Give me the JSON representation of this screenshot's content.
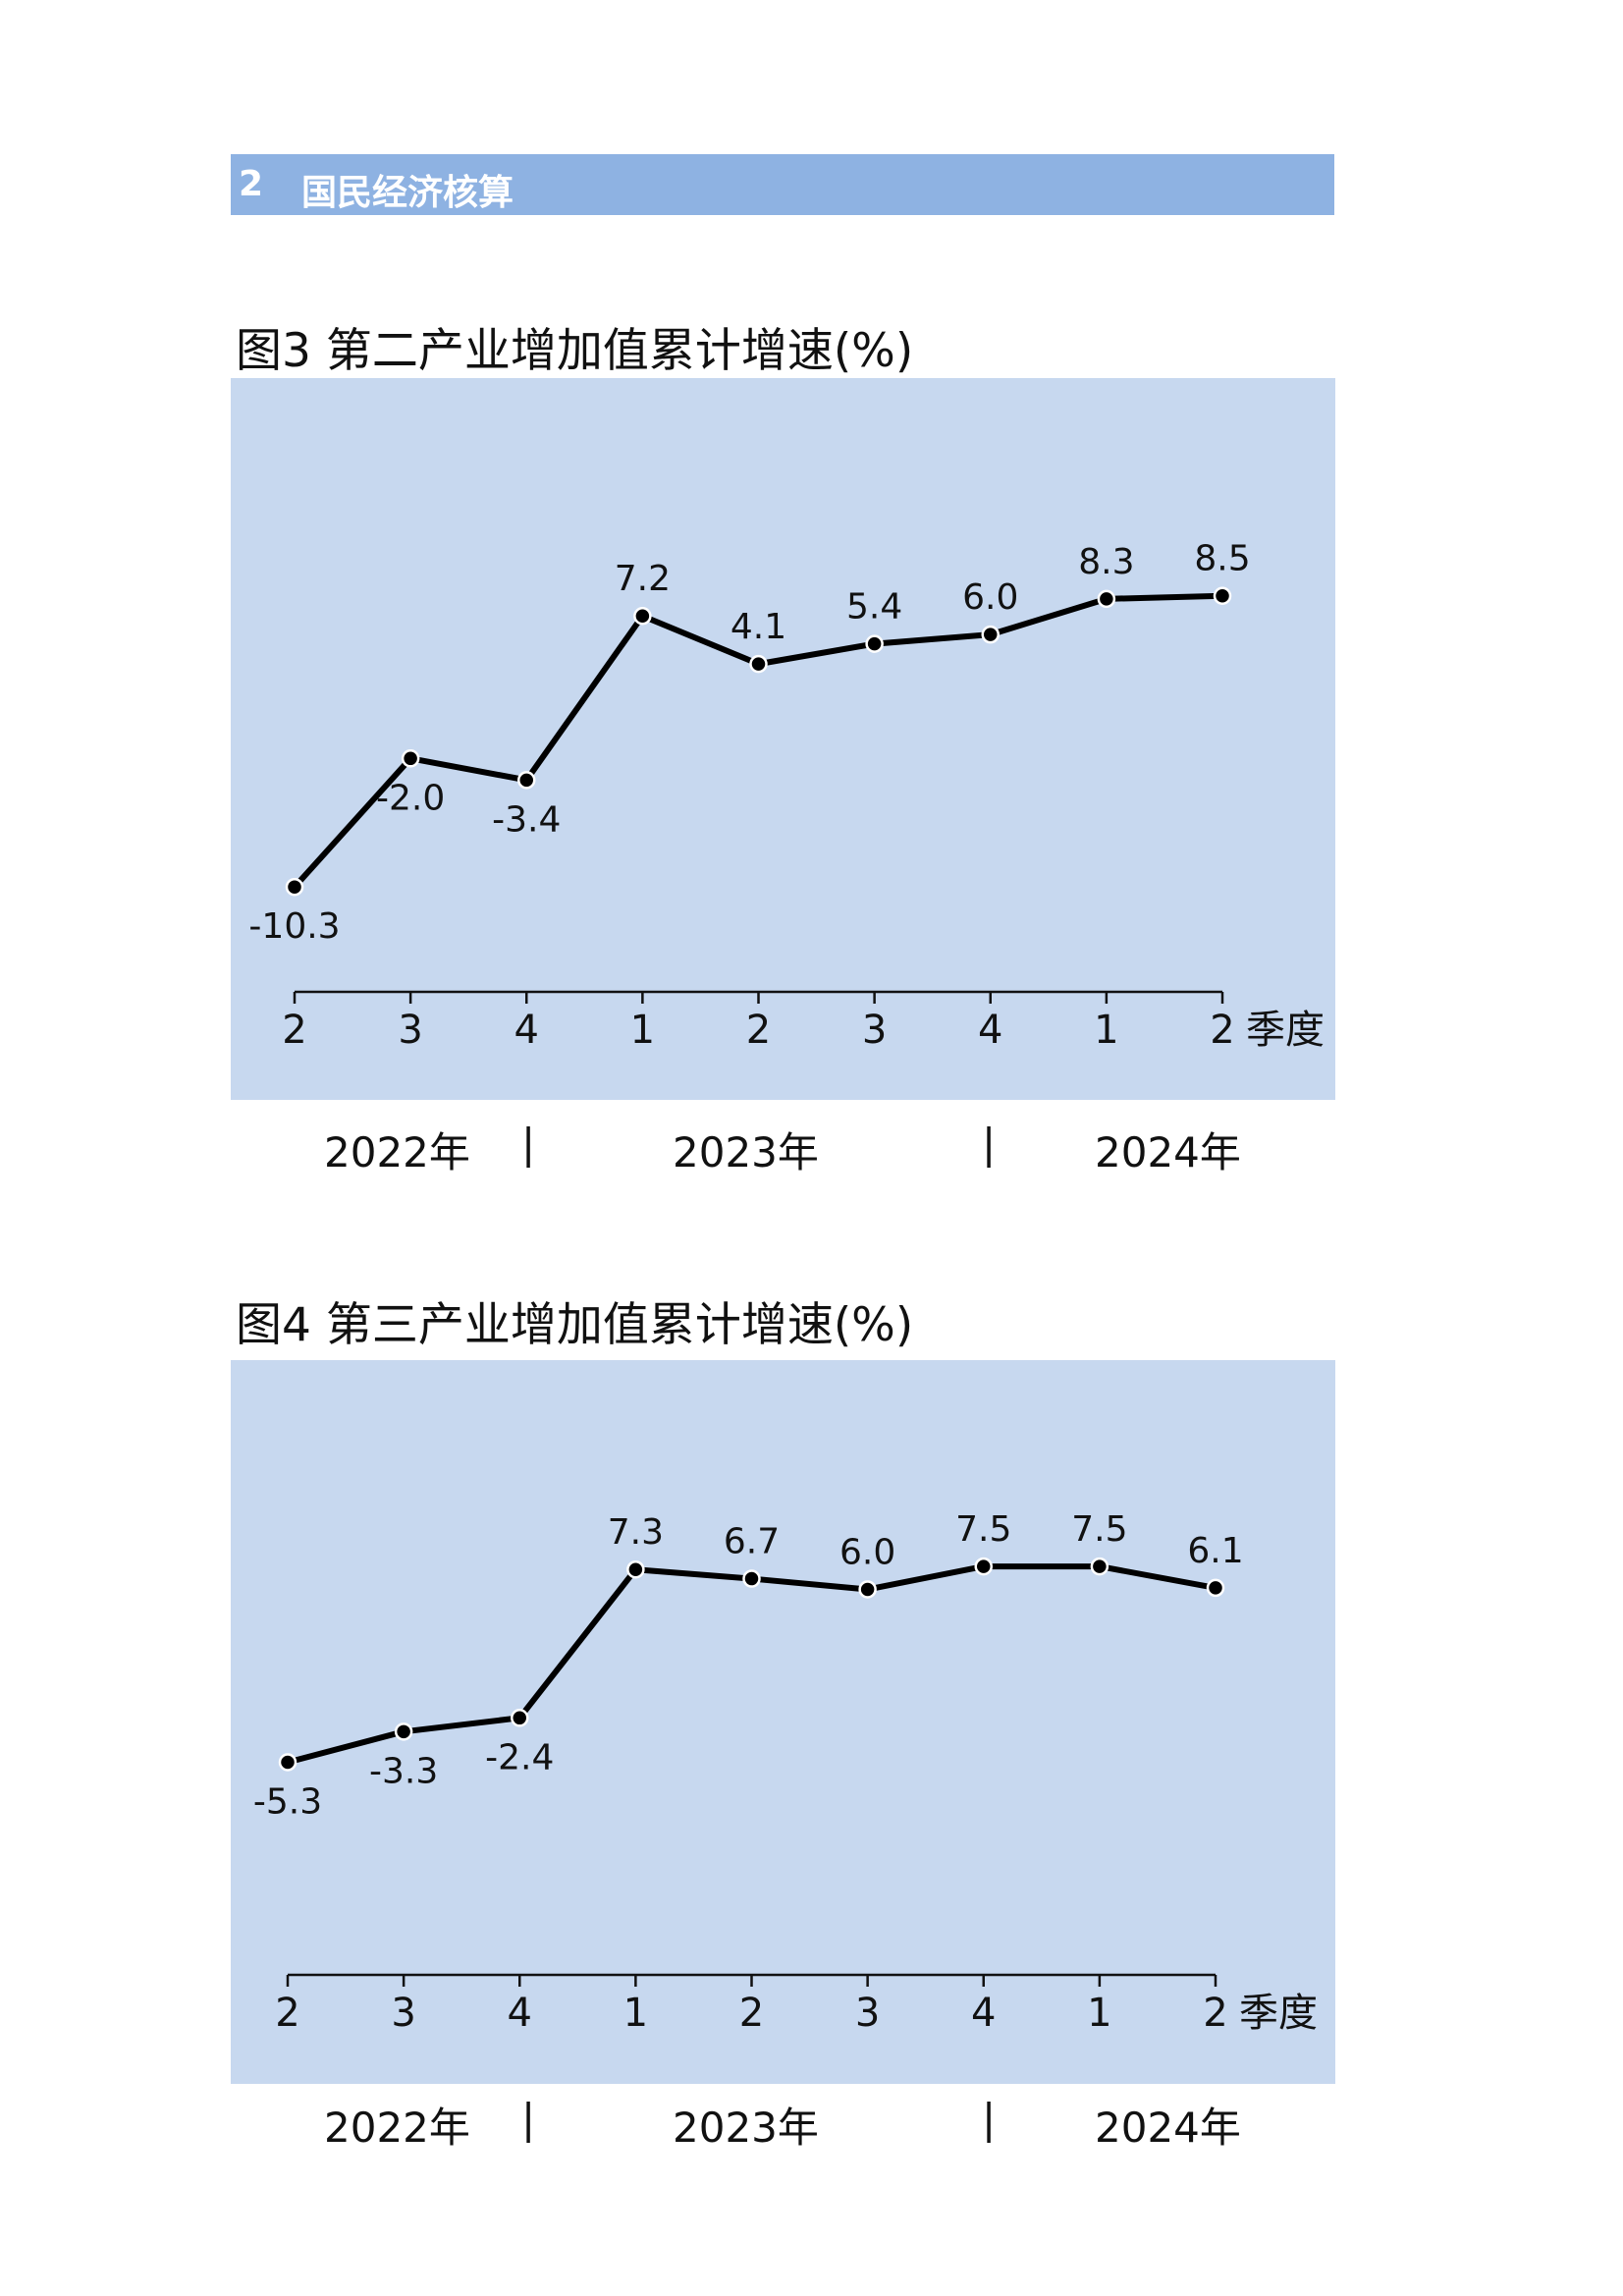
{
  "section": {
    "number": "2",
    "title": "国民经济核算"
  },
  "xaxis_suffix": "季度",
  "years": [
    "2022年",
    "2023年",
    "2024年"
  ],
  "year_separator": "|",
  "chart_data": [
    {
      "type": "line",
      "title": "图3  第二产业增加值累计增速(%)",
      "categories": [
        "2",
        "3",
        "4",
        "1",
        "2",
        "3",
        "4",
        "1",
        "2"
      ],
      "values": [
        -10.3,
        -2.0,
        -3.4,
        7.2,
        4.1,
        5.4,
        6.0,
        8.3,
        8.5
      ],
      "labels": [
        "-10.3",
        "-2.0",
        "-3.4",
        "7.2",
        "4.1",
        "5.4",
        "6.0",
        "8.3",
        "8.5"
      ],
      "label_pos": [
        "below",
        "below",
        "below",
        "above",
        "above",
        "above",
        "above",
        "above",
        "above"
      ],
      "ylim": [
        -12,
        14
      ],
      "grid": false
    },
    {
      "type": "line",
      "title": "图4  第三产业增加值累计增速(%)",
      "categories": [
        "2",
        "3",
        "4",
        "1",
        "2",
        "3",
        "4",
        "1",
        "2"
      ],
      "values": [
        -5.3,
        -3.3,
        -2.4,
        7.3,
        6.7,
        6.0,
        7.5,
        7.5,
        6.1
      ],
      "labels": [
        "-5.3",
        "-3.3",
        "-2.4",
        "7.3",
        "6.7",
        "6.0",
        "7.5",
        "7.5",
        "6.1"
      ],
      "label_pos": [
        "below",
        "below",
        "below",
        "above",
        "above",
        "above",
        "above",
        "above",
        "above"
      ],
      "ylim": [
        -14,
        12
      ],
      "grid": false
    }
  ]
}
